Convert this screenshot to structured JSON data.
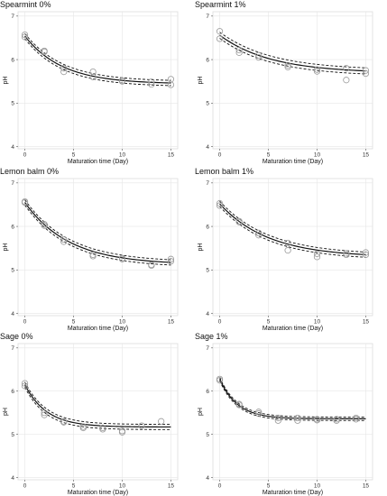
{
  "chart_data": [
    {
      "type": "scatter",
      "title": "Spearmint 0%",
      "xlabel": "Maturation time (Day)",
      "ylabel": "pH",
      "xlim": [
        -0.7,
        15.7
      ],
      "ylim": [
        3.95,
        7.1
      ],
      "xticks": [
        0,
        5,
        10,
        15
      ],
      "yticks": [
        4,
        5,
        6,
        7
      ],
      "grid": true,
      "points": [
        [
          0,
          6.57
        ],
        [
          0,
          6.52
        ],
        [
          2,
          6.18
        ],
        [
          2,
          6.2
        ],
        [
          4,
          5.72
        ],
        [
          4,
          5.8
        ],
        [
          7,
          5.72
        ],
        [
          7,
          5.6
        ],
        [
          10,
          5.52
        ],
        [
          10,
          5.5
        ],
        [
          13,
          5.43
        ],
        [
          13,
          5.49
        ],
        [
          15,
          5.55
        ],
        [
          15,
          5.42
        ]
      ],
      "fit": {
        "a": 5.44,
        "b": 1.1,
        "k": 0.26,
        "ci": 0.06
      }
    },
    {
      "type": "scatter",
      "title": "Spearmint 1%",
      "xlabel": "Maturation time (Day)",
      "ylabel": "pH",
      "xlim": [
        -0.7,
        15.7
      ],
      "ylim": [
        3.95,
        7.1
      ],
      "xticks": [
        0,
        5,
        10,
        15
      ],
      "yticks": [
        4,
        5,
        6,
        7
      ],
      "grid": true,
      "points": [
        [
          0,
          6.65
        ],
        [
          0,
          6.48
        ],
        [
          2,
          6.16
        ],
        [
          2,
          6.22
        ],
        [
          4,
          6.05
        ],
        [
          4,
          6.1
        ],
        [
          7,
          5.87
        ],
        [
          7,
          5.83
        ],
        [
          10,
          5.77
        ],
        [
          10,
          5.73
        ],
        [
          13,
          5.8
        ],
        [
          13,
          5.53
        ],
        [
          15,
          5.68
        ],
        [
          15,
          5.75
        ]
      ],
      "fit": {
        "a": 5.69,
        "b": 0.87,
        "k": 0.19,
        "ci": 0.07
      }
    },
    {
      "type": "scatter",
      "title": "Lemon balm 0%",
      "xlabel": "Maturation time (Day)",
      "ylabel": "pH",
      "xlim": [
        -0.7,
        15.7
      ],
      "ylim": [
        3.95,
        7.1
      ],
      "xticks": [
        0,
        5,
        10,
        15
      ],
      "yticks": [
        4,
        5,
        6,
        7
      ],
      "grid": true,
      "points": [
        [
          0,
          6.57
        ],
        [
          0,
          6.55
        ],
        [
          2,
          6.05
        ],
        [
          2,
          6.02
        ],
        [
          4,
          5.7
        ],
        [
          4,
          5.65
        ],
        [
          7,
          5.35
        ],
        [
          7,
          5.32
        ],
        [
          10,
          5.25
        ],
        [
          10,
          5.27
        ],
        [
          13,
          5.1
        ],
        [
          13,
          5.12
        ],
        [
          15,
          5.2
        ],
        [
          15,
          5.25
        ]
      ],
      "fit": {
        "a": 5.12,
        "b": 1.43,
        "k": 0.22,
        "ci": 0.06
      }
    },
    {
      "type": "scatter",
      "title": "Lemon balm 1%",
      "xlabel": "Maturation time (Day)",
      "ylabel": "pH",
      "xlim": [
        -0.7,
        15.7
      ],
      "ylim": [
        3.95,
        7.1
      ],
      "xticks": [
        0,
        5,
        10,
        15
      ],
      "yticks": [
        4,
        5,
        6,
        7
      ],
      "grid": true,
      "points": [
        [
          0,
          6.53
        ],
        [
          0,
          6.48
        ],
        [
          2,
          6.1
        ],
        [
          2,
          6.12
        ],
        [
          4,
          5.85
        ],
        [
          4,
          5.8
        ],
        [
          7,
          5.62
        ],
        [
          7,
          5.45
        ],
        [
          10,
          5.37
        ],
        [
          10,
          5.3
        ],
        [
          13,
          5.38
        ],
        [
          13,
          5.35
        ],
        [
          15,
          5.4
        ],
        [
          15,
          5.35
        ]
      ],
      "fit": {
        "a": 5.29,
        "b": 1.23,
        "k": 0.2,
        "ci": 0.06
      }
    },
    {
      "type": "scatter",
      "title": "Sage 0%",
      "xlabel": "Maturation time (Day)",
      "ylabel": "pH",
      "xlim": [
        -0.7,
        15.7
      ],
      "ylim": [
        3.95,
        7.1
      ],
      "xticks": [
        0,
        5,
        10,
        15
      ],
      "yticks": [
        4,
        5,
        6,
        7
      ],
      "grid": true,
      "points": [
        [
          0,
          6.18
        ],
        [
          0,
          6.12
        ],
        [
          2,
          5.5
        ],
        [
          2,
          5.45
        ],
        [
          4,
          5.3
        ],
        [
          4,
          5.28
        ],
        [
          6,
          5.18
        ],
        [
          6,
          5.15
        ],
        [
          8,
          5.12
        ],
        [
          8,
          5.15
        ],
        [
          10,
          5.08
        ],
        [
          10,
          5.05
        ],
        [
          12,
          5.2
        ],
        [
          14,
          5.3
        ]
      ],
      "fit": {
        "a": 5.17,
        "b": 0.98,
        "k": 0.45,
        "ci": 0.06
      }
    },
    {
      "type": "scatter",
      "title": "Sage 1%",
      "xlabel": "Maturation time (Day)",
      "ylabel": "pH",
      "xlim": [
        -0.7,
        15.7
      ],
      "ylim": [
        3.95,
        7.1
      ],
      "xticks": [
        0,
        5,
        10,
        15
      ],
      "yticks": [
        4,
        5,
        6,
        7
      ],
      "grid": true,
      "points": [
        [
          0,
          6.28
        ],
        [
          0,
          6.25
        ],
        [
          2,
          5.7
        ],
        [
          2,
          5.68
        ],
        [
          4,
          5.52
        ],
        [
          4,
          5.48
        ],
        [
          6,
          5.38
        ],
        [
          6,
          5.32
        ],
        [
          8,
          5.38
        ],
        [
          8,
          5.32
        ],
        [
          10,
          5.35
        ],
        [
          10,
          5.33
        ],
        [
          12,
          5.35
        ],
        [
          12,
          5.32
        ],
        [
          14,
          5.38
        ],
        [
          14,
          5.35
        ]
      ],
      "fit": {
        "a": 5.36,
        "b": 0.92,
        "k": 0.55,
        "ci": 0.04
      }
    }
  ]
}
